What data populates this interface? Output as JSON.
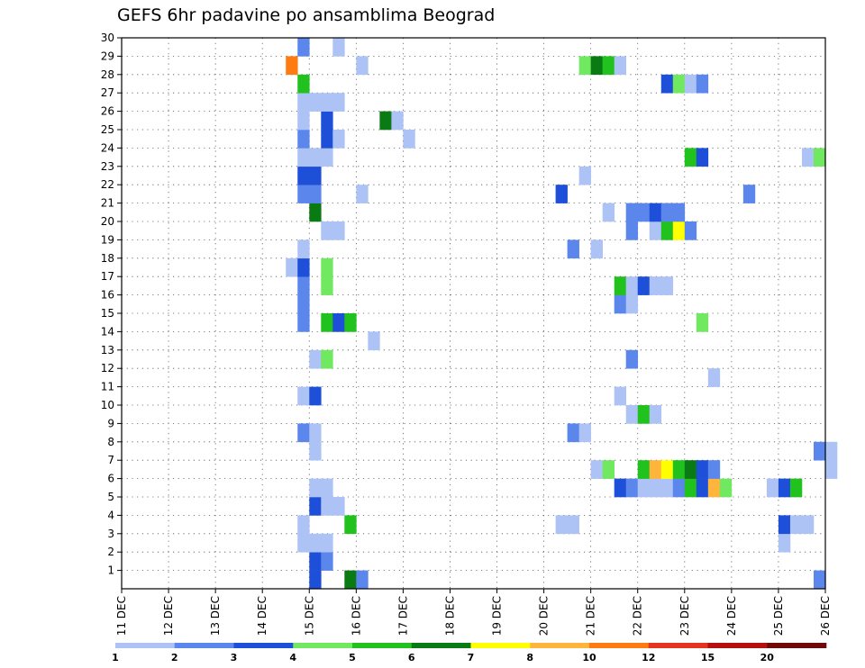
{
  "chart_data": {
    "type": "heatmap",
    "title": "GEFS 6hr padavine po ansamblima Beograd",
    "xlabel": "",
    "ylabel": "",
    "x_tick_labels": [
      "11 DEC",
      "12 DEC",
      "13 DEC",
      "14 DEC",
      "15 DEC",
      "16 DEC",
      "17 DEC",
      "18 DEC",
      "19 DEC",
      "20 DEC",
      "21 DEC",
      "22 DEC",
      "23 DEC",
      "24 DEC",
      "25 DEC",
      "26 DEC"
    ],
    "y_tick_labels": [
      "1",
      "2",
      "3",
      "4",
      "5",
      "6",
      "7",
      "8",
      "9",
      "10",
      "11",
      "12",
      "13",
      "14",
      "15",
      "16",
      "17",
      "18",
      "19",
      "20",
      "21",
      "22",
      "23",
      "24",
      "25",
      "26",
      "27",
      "28",
      "29",
      "30"
    ],
    "x_range_days": [
      0,
      15
    ],
    "y_range": [
      0,
      30
    ],
    "grid": true,
    "colorbar": {
      "labels": [
        "1",
        "2",
        "3",
        "4",
        "5",
        "6",
        "7",
        "8",
        "10",
        "12",
        "15",
        "20"
      ],
      "colors": [
        "#adc2f5",
        "#5b86ec",
        "#1e4fd8",
        "#70e860",
        "#21c21e",
        "#0a7a14",
        "#ffff00",
        "#ffb43c",
        "#ff7a10",
        "#e33420",
        "#b41010",
        "#6e0a0a"
      ]
    },
    "cells": [
      {
        "y": 0,
        "x": 4.0,
        "c": 2
      },
      {
        "y": 0,
        "x": 4.75,
        "c": 5
      },
      {
        "y": 0,
        "x": 5.0,
        "c": 1
      },
      {
        "y": 0,
        "x": 14.75,
        "c": 1
      },
      {
        "y": 1,
        "x": 4.0,
        "c": 2
      },
      {
        "y": 1,
        "x": 4.25,
        "c": 1
      },
      {
        "y": 2,
        "x": 3.75,
        "c": 0
      },
      {
        "y": 2,
        "x": 4.0,
        "c": 0
      },
      {
        "y": 2,
        "x": 4.25,
        "c": 0
      },
      {
        "y": 2,
        "x": 14.0,
        "c": 0
      },
      {
        "y": 3,
        "x": 3.75,
        "c": 0
      },
      {
        "y": 3,
        "x": 4.75,
        "c": 4
      },
      {
        "y": 3,
        "x": 9.25,
        "c": 0
      },
      {
        "y": 3,
        "x": 9.5,
        "c": 0
      },
      {
        "y": 3,
        "x": 14.0,
        "c": 2
      },
      {
        "y": 3,
        "x": 14.25,
        "c": 0
      },
      {
        "y": 3,
        "x": 14.5,
        "c": 0
      },
      {
        "y": 4,
        "x": 4.0,
        "c": 2
      },
      {
        "y": 4,
        "x": 4.25,
        "c": 0
      },
      {
        "y": 4,
        "x": 4.5,
        "c": 0
      },
      {
        "y": 5,
        "x": 4.0,
        "c": 0
      },
      {
        "y": 5,
        "x": 4.25,
        "c": 0
      },
      {
        "y": 5,
        "x": 10.5,
        "c": 2
      },
      {
        "y": 5,
        "x": 10.75,
        "c": 1
      },
      {
        "y": 5,
        "x": 11.0,
        "c": 0
      },
      {
        "y": 5,
        "x": 11.25,
        "c": 0
      },
      {
        "y": 5,
        "x": 11.5,
        "c": 0
      },
      {
        "y": 5,
        "x": 11.75,
        "c": 1
      },
      {
        "y": 5,
        "x": 12.0,
        "c": 4
      },
      {
        "y": 5,
        "x": 12.25,
        "c": 2
      },
      {
        "y": 5,
        "x": 12.5,
        "c": 7
      },
      {
        "y": 5,
        "x": 12.75,
        "c": 3
      },
      {
        "y": 5,
        "x": 13.75,
        "c": 0
      },
      {
        "y": 5,
        "x": 14.0,
        "c": 2
      },
      {
        "y": 5,
        "x": 14.25,
        "c": 4
      },
      {
        "y": 7,
        "x": 4.0,
        "c": 0
      },
      {
        "y": 7,
        "x": 14.75,
        "c": 1
      },
      {
        "y": 7,
        "x": 15.0,
        "c": 0
      },
      {
        "y": 6,
        "x": 10.0,
        "c": 0
      },
      {
        "y": 6,
        "x": 10.25,
        "c": 3
      },
      {
        "y": 6,
        "x": 11.0,
        "c": 4
      },
      {
        "y": 6,
        "x": 11.25,
        "c": 7
      },
      {
        "y": 6,
        "x": 11.5,
        "c": 6
      },
      {
        "y": 6,
        "x": 11.75,
        "c": 4
      },
      {
        "y": 6,
        "x": 12.0,
        "c": 5
      },
      {
        "y": 6,
        "x": 12.25,
        "c": 2
      },
      {
        "y": 6,
        "x": 12.5,
        "c": 1
      },
      {
        "y": 6,
        "x": 15.0,
        "c": 0
      },
      {
        "y": 8,
        "x": 3.75,
        "c": 1
      },
      {
        "y": 8,
        "x": 4.0,
        "c": 0
      },
      {
        "y": 8,
        "x": 9.5,
        "c": 1
      },
      {
        "y": 8,
        "x": 9.75,
        "c": 0
      },
      {
        "y": 9,
        "x": 10.75,
        "c": 0
      },
      {
        "y": 9,
        "x": 11.0,
        "c": 4
      },
      {
        "y": 9,
        "x": 11.25,
        "c": 0
      },
      {
        "y": 10,
        "x": 3.75,
        "c": 0
      },
      {
        "y": 10,
        "x": 4.0,
        "c": 2
      },
      {
        "y": 10,
        "x": 10.5,
        "c": 0
      },
      {
        "y": 11,
        "x": 12.5,
        "c": 0
      },
      {
        "y": 12,
        "x": 4.0,
        "c": 0
      },
      {
        "y": 12,
        "x": 4.25,
        "c": 3
      },
      {
        "y": 12,
        "x": 10.75,
        "c": 1
      },
      {
        "y": 13,
        "x": 5.25,
        "c": 0
      },
      {
        "y": 14,
        "x": 3.75,
        "c": 1
      },
      {
        "y": 14,
        "x": 4.25,
        "c": 4
      },
      {
        "y": 14,
        "x": 4.5,
        "c": 2
      },
      {
        "y": 14,
        "x": 4.75,
        "c": 4
      },
      {
        "y": 14,
        "x": 12.25,
        "c": 3
      },
      {
        "y": 15,
        "x": 3.75,
        "c": 1
      },
      {
        "y": 15,
        "x": 10.5,
        "c": 1
      },
      {
        "y": 15,
        "x": 10.75,
        "c": 0
      },
      {
        "y": 16,
        "x": 3.75,
        "c": 1
      },
      {
        "y": 16,
        "x": 4.25,
        "c": 3
      },
      {
        "y": 16,
        "x": 10.5,
        "c": 4
      },
      {
        "y": 16,
        "x": 10.75,
        "c": 0
      },
      {
        "y": 16,
        "x": 11.0,
        "c": 2
      },
      {
        "y": 16,
        "x": 11.25,
        "c": 0
      },
      {
        "y": 16,
        "x": 11.5,
        "c": 0
      },
      {
        "y": 17,
        "x": 3.5,
        "c": 0
      },
      {
        "y": 17,
        "x": 3.75,
        "c": 2
      },
      {
        "y": 17,
        "x": 4.25,
        "c": 3
      },
      {
        "y": 18,
        "x": 3.75,
        "c": 0
      },
      {
        "y": 18,
        "x": 9.5,
        "c": 1
      },
      {
        "y": 18,
        "x": 10.0,
        "c": 0
      },
      {
        "y": 19,
        "x": 4.25,
        "c": 0
      },
      {
        "y": 19,
        "x": 4.5,
        "c": 0
      },
      {
        "y": 19,
        "x": 10.75,
        "c": 1
      },
      {
        "y": 19,
        "x": 11.25,
        "c": 0
      },
      {
        "y": 19,
        "x": 11.5,
        "c": 4
      },
      {
        "y": 19,
        "x": 11.75,
        "c": 6
      },
      {
        "y": 19,
        "x": 12.0,
        "c": 1
      },
      {
        "y": 20,
        "x": 4.0,
        "c": 5
      },
      {
        "y": 20,
        "x": 10.25,
        "c": 0
      },
      {
        "y": 20,
        "x": 10.75,
        "c": 1
      },
      {
        "y": 20,
        "x": 11.0,
        "c": 1
      },
      {
        "y": 20,
        "x": 11.25,
        "c": 2
      },
      {
        "y": 20,
        "x": 11.5,
        "c": 1
      },
      {
        "y": 20,
        "x": 11.75,
        "c": 1
      },
      {
        "y": 21,
        "x": 3.75,
        "c": 1
      },
      {
        "y": 21,
        "x": 4.0,
        "c": 1
      },
      {
        "y": 21,
        "x": 5.0,
        "c": 0
      },
      {
        "y": 21,
        "x": 9.25,
        "c": 2
      },
      {
        "y": 21,
        "x": 13.25,
        "c": 1
      },
      {
        "y": 22,
        "x": 3.75,
        "c": 2
      },
      {
        "y": 22,
        "x": 4.0,
        "c": 2
      },
      {
        "y": 22,
        "x": 9.75,
        "c": 0
      },
      {
        "y": 23,
        "x": 3.75,
        "c": 0
      },
      {
        "y": 23,
        "x": 4.0,
        "c": 0
      },
      {
        "y": 23,
        "x": 4.25,
        "c": 0
      },
      {
        "y": 23,
        "x": 12.0,
        "c": 4
      },
      {
        "y": 23,
        "x": 12.25,
        "c": 2
      },
      {
        "y": 23,
        "x": 14.5,
        "c": 0
      },
      {
        "y": 23,
        "x": 14.75,
        "c": 3
      },
      {
        "y": 24,
        "x": 3.75,
        "c": 1
      },
      {
        "y": 24,
        "x": 4.25,
        "c": 2
      },
      {
        "y": 24,
        "x": 4.5,
        "c": 0
      },
      {
        "y": 24,
        "x": 6.0,
        "c": 0
      },
      {
        "y": 25,
        "x": 3.75,
        "c": 0
      },
      {
        "y": 25,
        "x": 4.25,
        "c": 2
      },
      {
        "y": 25,
        "x": 5.5,
        "c": 5
      },
      {
        "y": 25,
        "x": 5.75,
        "c": 0
      },
      {
        "y": 26,
        "x": 3.75,
        "c": 0
      },
      {
        "y": 26,
        "x": 4.0,
        "c": 0
      },
      {
        "y": 26,
        "x": 4.25,
        "c": 0
      },
      {
        "y": 26,
        "x": 4.5,
        "c": 0
      },
      {
        "y": 27,
        "x": 3.75,
        "c": 4
      },
      {
        "y": 27,
        "x": 11.5,
        "c": 2
      },
      {
        "y": 27,
        "x": 11.75,
        "c": 3
      },
      {
        "y": 27,
        "x": 12.0,
        "c": 0
      },
      {
        "y": 27,
        "x": 12.25,
        "c": 1
      },
      {
        "y": 28,
        "x": 3.5,
        "c": 8
      },
      {
        "y": 28,
        "x": 5.0,
        "c": 0
      },
      {
        "y": 28,
        "x": 9.75,
        "c": 3
      },
      {
        "y": 28,
        "x": 10.0,
        "c": 5
      },
      {
        "y": 28,
        "x": 10.25,
        "c": 4
      },
      {
        "y": 28,
        "x": 10.5,
        "c": 0
      },
      {
        "y": 29,
        "x": 3.75,
        "c": 1
      },
      {
        "y": 29,
        "x": 4.5,
        "c": 0
      }
    ]
  }
}
